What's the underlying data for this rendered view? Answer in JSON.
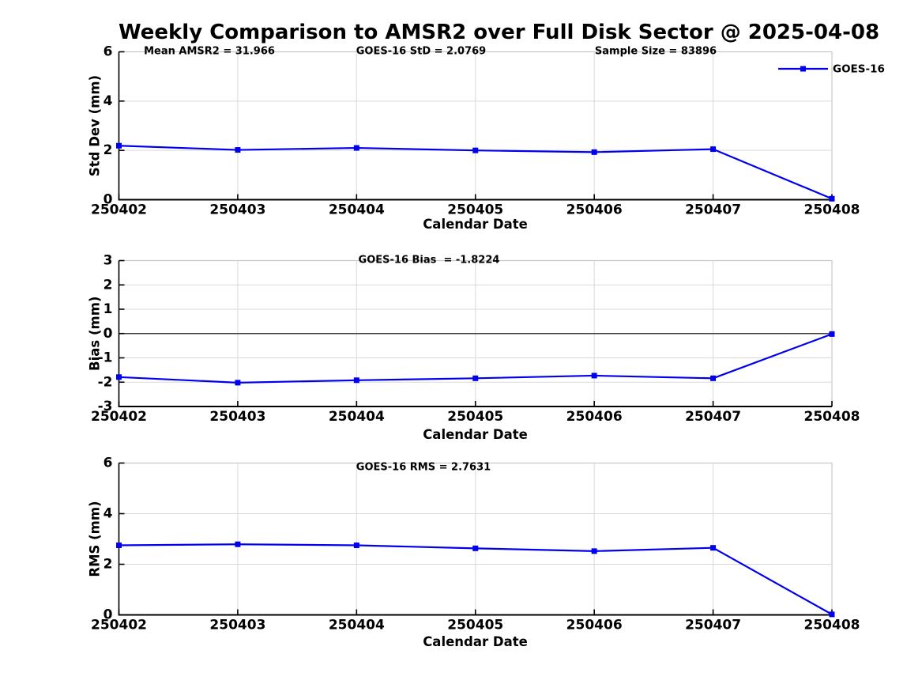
{
  "title": "Weekly Comparison to AMSR2 over Full Disk Sector @ 2025-04-08",
  "legend": {
    "label": "GOES-16",
    "color": "#0000EE"
  },
  "colors": {
    "line_blue": "#0000EE",
    "grid": "#D9D9D9",
    "box_border": "#C9C9C9",
    "zero_line": "#404040",
    "axis": "#000000",
    "text": "#000000",
    "background": "#FFFFFF"
  },
  "chart_data": [
    {
      "type": "line",
      "ylabel": "Std Dev (mm)",
      "xlabel": "Calendar Date",
      "ylim": [
        0,
        6
      ],
      "yticks": [
        0,
        2,
        4,
        6
      ],
      "grid": true,
      "legend_position": "top-right-outside",
      "categories": [
        "250402",
        "250403",
        "250404",
        "250405",
        "250406",
        "250407",
        "250408"
      ],
      "series": [
        {
          "name": "GOES-16",
          "color": "#0000EE",
          "marker": "square",
          "values": [
            2.19,
            2.02,
            2.1,
            2.0,
            1.93,
            2.05,
            0.04
          ]
        }
      ],
      "annotations": [
        "Mean AMSR2 = 31.966",
        "GOES-16 StD = 2.0769",
        "Sample Size = 83896"
      ]
    },
    {
      "type": "line",
      "ylabel": "Bias (mm)",
      "xlabel": "Calendar Date",
      "ylim": [
        -3,
        3
      ],
      "yticks": [
        -3,
        -2,
        -1,
        0,
        1,
        2,
        3
      ],
      "grid": true,
      "zero_line": true,
      "categories": [
        "250402",
        "250403",
        "250404",
        "250405",
        "250406",
        "250407",
        "250408"
      ],
      "series": [
        {
          "name": "GOES-16",
          "color": "#0000EE",
          "marker": "square",
          "values": [
            -1.79,
            -2.02,
            -1.92,
            -1.84,
            -1.73,
            -1.84,
            -0.02
          ]
        }
      ],
      "annotations": [
        "GOES-16 Bias  = -1.8224"
      ]
    },
    {
      "type": "line",
      "ylabel": "RMS (mm)",
      "xlabel": "Calendar Date",
      "ylim": [
        0,
        6
      ],
      "yticks": [
        0,
        2,
        4,
        6
      ],
      "grid": true,
      "categories": [
        "250402",
        "250403",
        "250404",
        "250405",
        "250406",
        "250407",
        "250408"
      ],
      "series": [
        {
          "name": "GOES-16",
          "color": "#0000EE",
          "marker": "square",
          "values": [
            2.75,
            2.79,
            2.75,
            2.63,
            2.52,
            2.65,
            0.02
          ]
        }
      ],
      "annotations": [
        "GOES-16 RMS = 2.7631"
      ]
    }
  ]
}
